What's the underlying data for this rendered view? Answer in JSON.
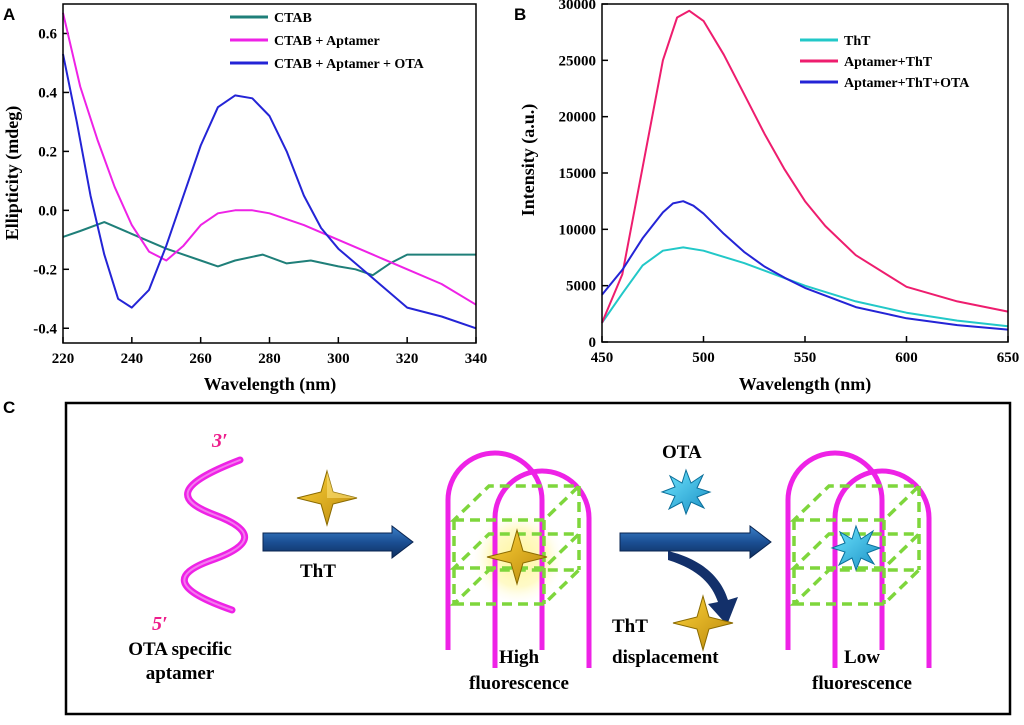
{
  "panels": {
    "a": "A",
    "b": "B",
    "c": "C"
  },
  "chart_data": [
    {
      "type": "line",
      "panel": "A",
      "xlabel": "Wavelength (nm)",
      "ylabel": "Ellipticity (mdeg)",
      "xlim": [
        220,
        340
      ],
      "ylim": [
        -0.45,
        0.7
      ],
      "xticks": [
        220,
        240,
        260,
        280,
        300,
        320,
        340
      ],
      "yticks": [
        -0.4,
        -0.2,
        0.0,
        0.2,
        0.4,
        0.6
      ],
      "ytick_labels": [
        "-0.4",
        "-0.2",
        "0.0",
        "0.2",
        "0.4",
        "0.6"
      ],
      "legend_position": "top-right",
      "series": [
        {
          "name": "CTAB",
          "color": "#1f7f79",
          "x": [
            220,
            225,
            232,
            240,
            250,
            260,
            265,
            270,
            278,
            285,
            292,
            300,
            305,
            310,
            315,
            320,
            330,
            340
          ],
          "y": [
            -0.09,
            -0.07,
            -0.04,
            -0.08,
            -0.13,
            -0.17,
            -0.19,
            -0.17,
            -0.15,
            -0.18,
            -0.17,
            -0.19,
            -0.2,
            -0.22,
            -0.18,
            -0.15,
            -0.15,
            -0.15
          ]
        },
        {
          "name": "CTAB + Aptamer",
          "color": "#ee22e6",
          "x": [
            220,
            225,
            230,
            235,
            240,
            245,
            250,
            255,
            260,
            265,
            270,
            275,
            280,
            285,
            290,
            300,
            310,
            320,
            330,
            340
          ],
          "y": [
            0.67,
            0.42,
            0.24,
            0.08,
            -0.05,
            -0.14,
            -0.17,
            -0.12,
            -0.05,
            -0.01,
            0.0,
            0.0,
            -0.01,
            -0.03,
            -0.05,
            -0.1,
            -0.15,
            -0.2,
            -0.25,
            -0.32
          ]
        },
        {
          "name": "CTAB + Aptamer + OTA",
          "color": "#2424d6",
          "x": [
            220,
            224,
            228,
            232,
            236,
            240,
            245,
            250,
            255,
            260,
            265,
            270,
            275,
            280,
            285,
            290,
            295,
            300,
            305,
            310,
            315,
            320,
            330,
            340
          ],
          "y": [
            0.53,
            0.3,
            0.05,
            -0.15,
            -0.3,
            -0.33,
            -0.27,
            -0.12,
            0.05,
            0.22,
            0.35,
            0.39,
            0.38,
            0.32,
            0.2,
            0.05,
            -0.06,
            -0.13,
            -0.18,
            -0.23,
            -0.28,
            -0.33,
            -0.36,
            -0.4
          ]
        }
      ]
    },
    {
      "type": "line",
      "panel": "B",
      "xlabel": "Wavelength (nm)",
      "ylabel": "Intensity (a.u.)",
      "xlim": [
        450,
        650
      ],
      "ylim": [
        0,
        30000
      ],
      "xticks": [
        450,
        500,
        550,
        600,
        650
      ],
      "yticks": [
        0,
        5000,
        10000,
        15000,
        20000,
        25000,
        30000
      ],
      "legend_position": "top-right",
      "series": [
        {
          "name": "ThT",
          "color": "#22c8c8",
          "x": [
            450,
            460,
            470,
            480,
            490,
            500,
            520,
            550,
            575,
            600,
            625,
            650
          ],
          "y": [
            1700,
            4300,
            6800,
            8100,
            8400,
            8100,
            7000,
            5000,
            3600,
            2600,
            1900,
            1400
          ]
        },
        {
          "name": "Aptamer+ThT",
          "color": "#ee1d6e",
          "x": [
            450,
            460,
            470,
            480,
            487,
            493,
            500,
            510,
            520,
            530,
            540,
            550,
            560,
            575,
            600,
            625,
            650
          ],
          "y": [
            1700,
            6000,
            15500,
            25000,
            28800,
            29400,
            28500,
            25500,
            22000,
            18500,
            15300,
            12500,
            10300,
            7700,
            4900,
            3600,
            2700
          ]
        },
        {
          "name": "Aptamer+ThT+OTA",
          "color": "#2424d6",
          "x": [
            450,
            460,
            470,
            480,
            485,
            490,
            495,
            500,
            510,
            520,
            530,
            540,
            550,
            575,
            600,
            625,
            650
          ],
          "y": [
            4200,
            6400,
            9200,
            11500,
            12300,
            12500,
            12100,
            11400,
            9600,
            8000,
            6700,
            5700,
            4800,
            3100,
            2100,
            1500,
            1100
          ]
        }
      ]
    }
  ],
  "diagram": {
    "prime3": "3′",
    "prime5": "5′",
    "aptamer_label_1": "OTA specific",
    "aptamer_label_2": "aptamer",
    "tht_label": "ThT",
    "ota_label": "OTA",
    "high_1": "High",
    "high_2": "fluorescence",
    "disp_1": "ThT",
    "disp_2": "displacement",
    "low_1": "Low",
    "low_2": "fluorescence"
  }
}
